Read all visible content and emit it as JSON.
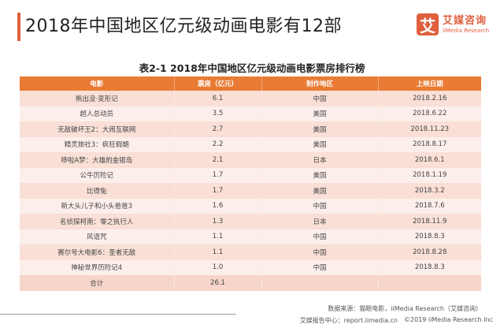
{
  "header": {
    "title": "2018年中国地区亿元级动画电影有12部",
    "accent_color": "#e0603e"
  },
  "logo": {
    "mark": "艾",
    "name_cn": "艾媒咨询",
    "name_en": "iiMedia Research"
  },
  "table": {
    "caption": "表2-1 2018年中国地区亿元级动画电影票房排行榜",
    "header_color": "#e97b35",
    "columns": [
      "电影",
      "票房（亿元）",
      "制作地区",
      "上映日期"
    ],
    "rows": [
      {
        "movie": "熊出没·变形记",
        "box_office": "6.1",
        "region": "中国",
        "date": "2018.2.16"
      },
      {
        "movie": "超人总动员",
        "box_office": "3.5",
        "region": "美国",
        "date": "2018.6.22"
      },
      {
        "movie": "无敌破坏王2：大闹互联网",
        "box_office": "2.7",
        "region": "美国",
        "date": "2018.11.23"
      },
      {
        "movie": "精灵旅社3：疯狂假期",
        "box_office": "2.2",
        "region": "美国",
        "date": "2018.8.17"
      },
      {
        "movie": "哆啦A梦：大雄的金银岛",
        "box_office": "2.1",
        "region": "日本",
        "date": "2018.6.1"
      },
      {
        "movie": "公牛历险记",
        "box_office": "1.7",
        "region": "美国",
        "date": "2018.1.19"
      },
      {
        "movie": "比得兔",
        "box_office": "1.7",
        "region": "美国",
        "date": "2018.3.2"
      },
      {
        "movie": "新大头儿子和小头爸爸3",
        "box_office": "1.6",
        "region": "中国",
        "date": "2018.7.6"
      },
      {
        "movie": "名侦探柯南：零之执行人",
        "box_office": "1.3",
        "region": "日本",
        "date": "2018.11.9"
      },
      {
        "movie": "风语咒",
        "box_office": "1.1",
        "region": "中国",
        "date": "2018.8.3"
      },
      {
        "movie": "赛尔号大电影6：圣者无敌",
        "box_office": "1.1",
        "region": "中国",
        "date": "2018.8.28"
      },
      {
        "movie": "神秘世界历险记4",
        "box_office": "1.0",
        "region": "中国",
        "date": "2018.8.3"
      }
    ],
    "total": {
      "label": "合计",
      "box_office": "26.1",
      "region": "",
      "date": ""
    }
  },
  "footer": {
    "source": "数据来源：猫眼电影，iiMedia Research（艾媒咨询）",
    "report_center": "艾媒报告中心：report.iimedia.cn",
    "copyright": "©2019  iiMedia Research  Inc"
  }
}
